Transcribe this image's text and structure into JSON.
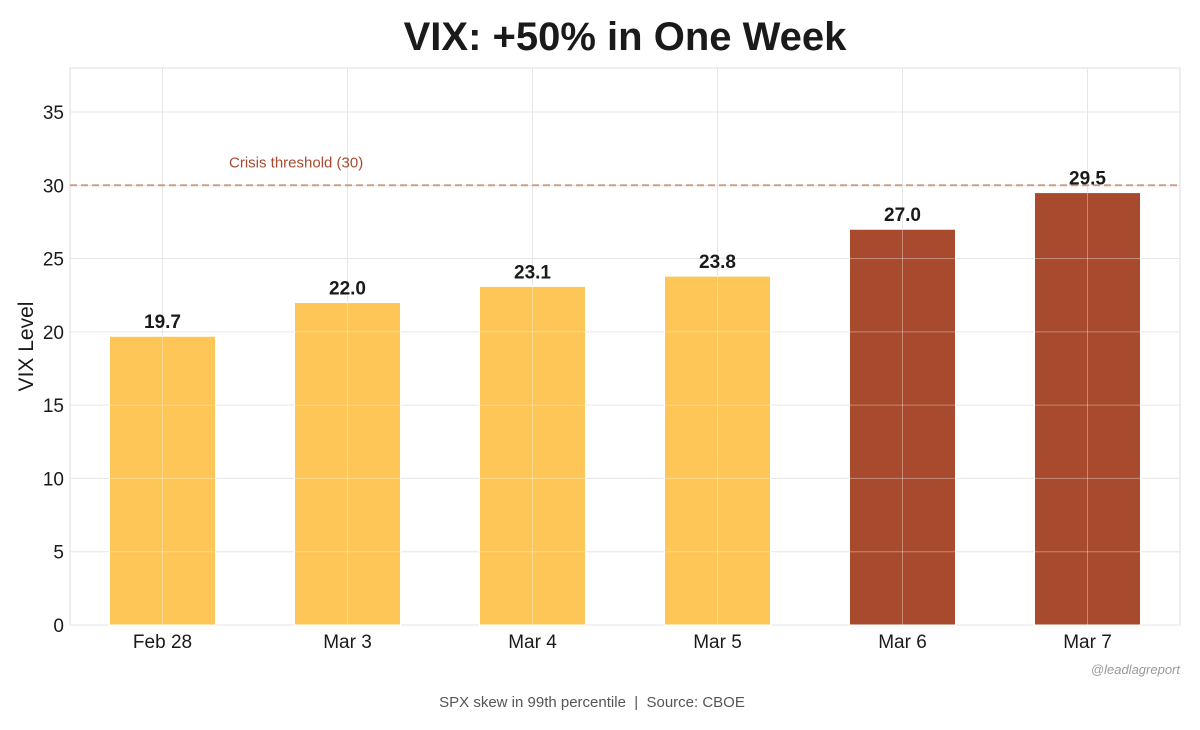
{
  "chart_data": {
    "type": "bar",
    "title": "VIX: +50% in One Week",
    "xlabel": "",
    "ylabel": "VIX Level",
    "categories": [
      "Feb 28",
      "Mar 3",
      "Mar 4",
      "Mar 5",
      "Mar 6",
      "Mar 7"
    ],
    "values": [
      19.7,
      22.0,
      23.1,
      23.8,
      27.0,
      29.5
    ],
    "value_labels": [
      "19.7",
      "22.0",
      "23.1",
      "23.8",
      "27.0",
      "29.5"
    ],
    "bar_colors": [
      "#FDC656",
      "#FDC656",
      "#FDC656",
      "#FDC656",
      "#A84A2E",
      "#A84A2E"
    ],
    "ylim": [
      0,
      38
    ],
    "yticks": [
      0,
      5,
      10,
      15,
      20,
      25,
      30,
      35
    ],
    "grid": true,
    "threshold": {
      "value": 30,
      "label": "Crisis threshold (30)",
      "color": "#C9A08C",
      "label_color": "#A84A2E",
      "style": "dashed"
    },
    "watermark": "@leadlagreport",
    "footnote": "SPX skew in 99th percentile  |  Source: CBOE"
  }
}
